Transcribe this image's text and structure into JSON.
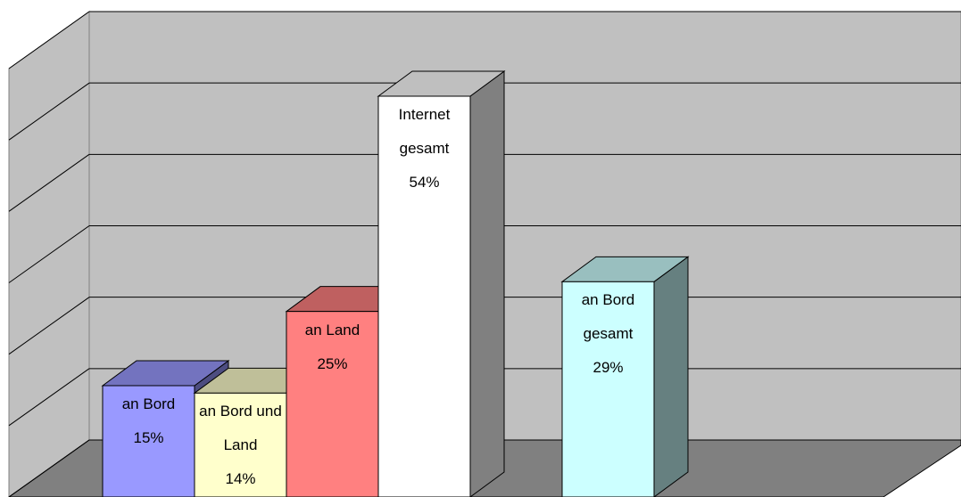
{
  "chart_data": {
    "type": "bar3d",
    "categories": [
      "an Bord",
      "an Bord und Land",
      "an Land",
      "Internet gesamt",
      "an Bord gesamt"
    ],
    "values": [
      15,
      14,
      25,
      54,
      29
    ],
    "value_labels": [
      "15%",
      "14%",
      "25%",
      "54%",
      "29%"
    ],
    "colors": [
      "#9999ff",
      "#ffffcc",
      "#ff8080",
      "#ffffff",
      "#ccffff"
    ],
    "ylim": [
      0,
      60
    ],
    "yticks": [
      0,
      10,
      20,
      30,
      40,
      50,
      60
    ],
    "grid": true
  }
}
